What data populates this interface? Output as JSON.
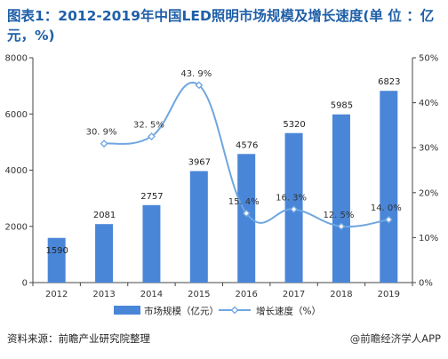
{
  "title": "图表1：2012-2019年中国LED照明市场规模及增长速度(单 位 ：亿元，%)",
  "footer": {
    "source": "资料来源：前瞻产业研究院整理",
    "brand": "@前瞻经济学人APP"
  },
  "chart_data": {
    "type": "bar+line",
    "categories": [
      "2012",
      "2013",
      "2014",
      "2015",
      "2016",
      "2017",
      "2018",
      "2019"
    ],
    "series": [
      {
        "name": "市场规模（亿元）",
        "type": "bar",
        "axis": "left",
        "values": [
          1590,
          2081,
          2757,
          3967,
          4576,
          5320,
          5985,
          6823
        ],
        "labels": [
          "1590",
          "2081",
          "2757",
          "3967",
          "4576",
          "5320",
          "5985",
          "6823"
        ],
        "color": "#4a86d8"
      },
      {
        "name": "增长速度（%）",
        "type": "line",
        "axis": "right",
        "values": [
          null,
          30.9,
          32.5,
          43.9,
          15.4,
          16.3,
          12.5,
          14.0
        ],
        "labels": [
          "",
          "30. 9%",
          "32. 5%",
          "43. 9%",
          "15. 4%",
          "16. 3%",
          "12. 5%",
          "14. 0%"
        ],
        "color": "#6fa6e0"
      }
    ],
    "y_left": {
      "min": 0,
      "max": 8000,
      "ticks": [
        "0",
        "2000",
        "4000",
        "6000",
        "8000"
      ]
    },
    "y_right": {
      "min": 0,
      "max": 50,
      "ticks": [
        "0%",
        "10%",
        "20%",
        "30%",
        "40%",
        "50%"
      ]
    },
    "grid": false,
    "legend": "bottom"
  }
}
